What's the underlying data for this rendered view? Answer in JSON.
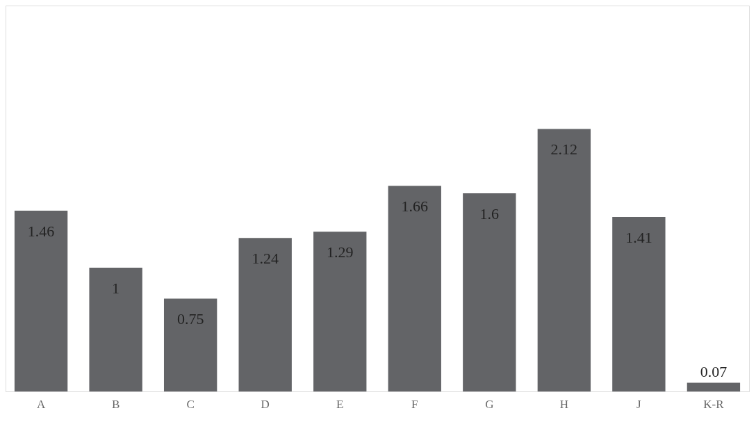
{
  "chart_data": {
    "type": "bar",
    "categories": [
      "A",
      "B",
      "C",
      "D",
      "E",
      "F",
      "G",
      "H",
      "J",
      "K-R"
    ],
    "values": [
      1.46,
      1,
      0.75,
      1.24,
      1.29,
      1.66,
      1.6,
      2.12,
      1.41,
      0.07
    ],
    "color": "#636467",
    "data_labels": true,
    "grid": false
  }
}
